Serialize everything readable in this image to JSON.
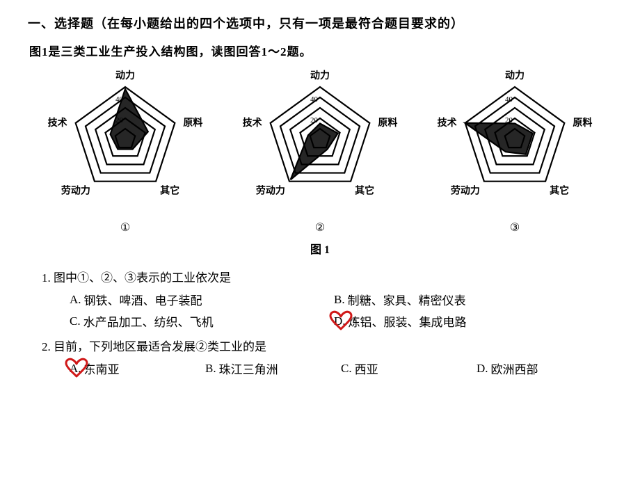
{
  "heading": "一、选择题（在每小题给出的四个选项中，只有一项是最符合题目要求的）",
  "subheading": "图1是三类工业生产投入结构图，读图回答1～2题。",
  "figure_caption": "图 1",
  "axes": [
    "动力",
    "原料",
    "其它",
    "劳动力",
    "技术"
  ],
  "ticks": [
    "20",
    "40"
  ],
  "chart_styling": {
    "grid_levels": 5,
    "max_value": 50,
    "outline_color": "#000000",
    "fill_color": "#000000",
    "fill_opacity": 0.85,
    "line_width": 2.2,
    "data_line_width": 2.2,
    "figure_radius": 75,
    "label_fontsize": 14,
    "tick_fontsize": 11
  },
  "charts": [
    {
      "label": "①",
      "values": [
        48,
        23,
        12,
        12,
        15
      ]
    },
    {
      "label": "②",
      "values": [
        15,
        18,
        12,
        48,
        12
      ]
    },
    {
      "label": "③",
      "values": [
        15,
        18,
        18,
        15,
        50
      ]
    }
  ],
  "questions": [
    {
      "number": "1.",
      "text": "图中①、②、③表示的工业依次是",
      "layout": 2,
      "options": [
        {
          "letter": "A.",
          "text": "钢铁、啤酒、电子装配",
          "marked": false
        },
        {
          "letter": "B.",
          "text": "制糖、家具、精密仪表",
          "marked": false
        },
        {
          "letter": "C.",
          "text": "水产品加工、纺织、飞机",
          "marked": false
        },
        {
          "letter": "D.",
          "text": "炼铝、服装、集成电路",
          "marked": true
        }
      ]
    },
    {
      "number": "2.",
      "text": "目前，下列地区最适合发展②类工业的是",
      "layout": 4,
      "options": [
        {
          "letter": "A.",
          "text": "东南亚",
          "marked": true
        },
        {
          "letter": "B.",
          "text": "珠江三角洲",
          "marked": false
        },
        {
          "letter": "C.",
          "text": "西亚",
          "marked": false
        },
        {
          "letter": "D.",
          "text": "欧洲西部",
          "marked": false
        }
      ]
    }
  ],
  "heart_color": "#d01818",
  "heart_stroke_width": 3
}
